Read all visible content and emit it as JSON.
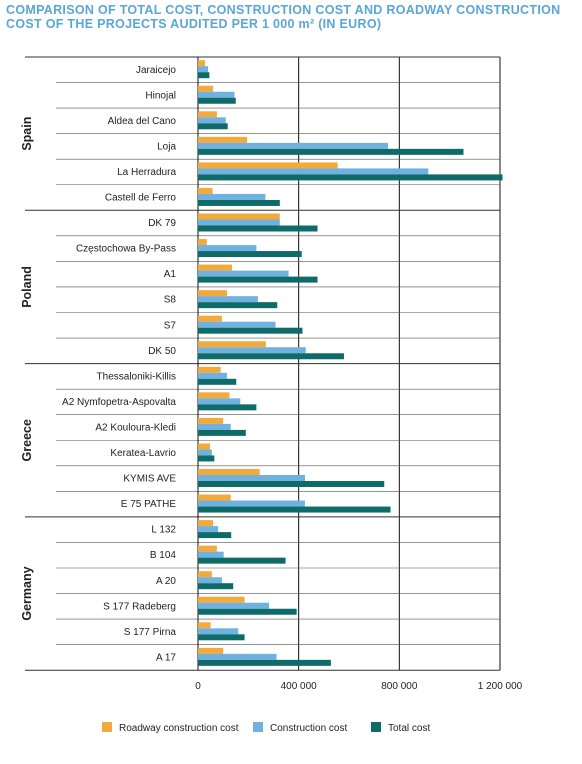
{
  "title_lines": [
    "COMPARISON OF TOTAL COST, CONSTRUCTION COST AND ROADWAY CONSTRUCTION",
    "COST OF THE PROJECTS AUDITED PER 1 000 m² (IN EURO)"
  ],
  "chart_data": {
    "type": "bar",
    "orientation": "horizontal",
    "title": "COMPARISON OF TOTAL COST, CONSTRUCTION COST AND ROADWAY CONSTRUCTION COST OF THE PROJECTS AUDITED PER 1 000 m² (IN EURO)",
    "xlim": [
      0,
      1200000
    ],
    "x_ticks": [
      0,
      400000,
      800000,
      1200000
    ],
    "x_tick_labels": [
      "0",
      "400 000",
      "800 000",
      "1 200 000"
    ],
    "grid": true,
    "legend_position": "bottom",
    "series": [
      {
        "name": "Roadway construction cost",
        "color": "#f4a93b"
      },
      {
        "name": "Construction cost",
        "color": "#6fb2e0"
      },
      {
        "name": "Total cost",
        "color": "#0f6b6a"
      }
    ],
    "groups": [
      {
        "name": "Spain",
        "items": [
          {
            "label": "Jaraicejo",
            "values": [
              28000,
              40000,
              45000
            ]
          },
          {
            "label": "Hinojal",
            "values": [
              60000,
              145000,
              150000
            ]
          },
          {
            "label": "Aldea del Cano",
            "values": [
              75000,
              110000,
              118000
            ]
          },
          {
            "label": "Loja",
            "values": [
              195000,
              755000,
              1055000
            ]
          },
          {
            "label": "La Herradura",
            "values": [
              555000,
              915000,
              1210000
            ]
          },
          {
            "label": "Castell de Ferro",
            "values": [
              58000,
              268000,
              325000
            ]
          }
        ]
      },
      {
        "name": "Poland",
        "items": [
          {
            "label": "DK 79",
            "values": [
              325000,
              325000,
              475000
            ]
          },
          {
            "label": "Częstochowa By-Pass",
            "values": [
              35000,
              232000,
              412000
            ]
          },
          {
            "label": "A1",
            "values": [
              135000,
              360000,
              475000
            ]
          },
          {
            "label": "S8",
            "values": [
              115000,
              238000,
              315000
            ]
          },
          {
            "label": "S7",
            "values": [
              95000,
              308000,
              415000
            ]
          },
          {
            "label": "DK 50",
            "values": [
              270000,
              428000,
              580000
            ]
          }
        ]
      },
      {
        "name": "Greece",
        "items": [
          {
            "label": "Thessaloniki-Killis",
            "values": [
              90000,
              115000,
              152000
            ]
          },
          {
            "label": "A2 Nymfopetra-Aspovalta",
            "values": [
              125000,
              168000,
              232000
            ]
          },
          {
            "label": "A2 Kouloura-Kledi",
            "values": [
              100000,
              130000,
              190000
            ]
          },
          {
            "label": "Keratea-Lavrio",
            "values": [
              48000,
              55000,
              65000
            ]
          },
          {
            "label": "KYMIS AVE",
            "values": [
              245000,
              425000,
              740000
            ]
          },
          {
            "label": "E 75 PATHE",
            "values": [
              130000,
              425000,
              765000
            ]
          }
        ]
      },
      {
        "name": "Germany",
        "items": [
          {
            "label": "L 132",
            "values": [
              60000,
              80000,
              132000
            ]
          },
          {
            "label": "B 104",
            "values": [
              75000,
              102000,
              348000
            ]
          },
          {
            "label": "A 20",
            "values": [
              55000,
              95000,
              140000
            ]
          },
          {
            "label": "S 177 Radeberg",
            "values": [
              185000,
              282000,
              392000
            ]
          },
          {
            "label": "S 177 Pirna",
            "values": [
              50000,
              160000,
              185000
            ]
          },
          {
            "label": "A 17",
            "values": [
              100000,
              312000,
              528000
            ]
          }
        ]
      }
    ]
  }
}
